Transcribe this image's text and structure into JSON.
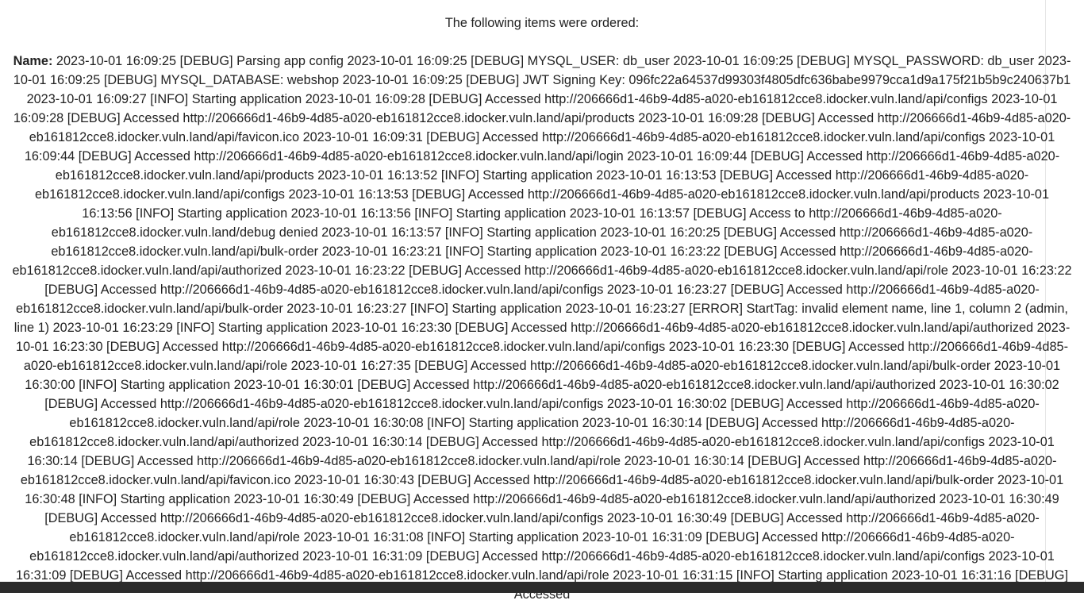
{
  "page": {
    "heading": "The following items were ordered:",
    "name_label": "Name:",
    "name_value": "2023-10-01 16:09:25 [DEBUG] Parsing app config 2023-10-01 16:09:25 [DEBUG] MYSQL_USER: db_user 2023-10-01 16:09:25 [DEBUG] MYSQL_PASSWORD: db_user 2023-10-01 16:09:25 [DEBUG] MYSQL_DATABASE: webshop 2023-10-01 16:09:25 [DEBUG] JWT Signing Key: 096fc22a64537d99303f4805dfc636babe9979cca1d9a175f21b5b9c240637b1 2023-10-01 16:09:27 [INFO] Starting application 2023-10-01 16:09:28 [DEBUG] Accessed http://206666d1-46b9-4d85-a020-eb161812cce8.idocker.vuln.land/api/configs 2023-10-01 16:09:28 [DEBUG] Accessed http://206666d1-46b9-4d85-a020-eb161812cce8.idocker.vuln.land/api/products 2023-10-01 16:09:28 [DEBUG] Accessed http://206666d1-46b9-4d85-a020-eb161812cce8.idocker.vuln.land/api/favicon.ico 2023-10-01 16:09:31 [DEBUG] Accessed http://206666d1-46b9-4d85-a020-eb161812cce8.idocker.vuln.land/api/configs 2023-10-01 16:09:44 [DEBUG] Accessed http://206666d1-46b9-4d85-a020-eb161812cce8.idocker.vuln.land/api/login 2023-10-01 16:09:44 [DEBUG] Accessed http://206666d1-46b9-4d85-a020-eb161812cce8.idocker.vuln.land/api/products 2023-10-01 16:13:52 [INFO] Starting application 2023-10-01 16:13:53 [DEBUG] Accessed http://206666d1-46b9-4d85-a020-eb161812cce8.idocker.vuln.land/api/configs 2023-10-01 16:13:53 [DEBUG] Accessed http://206666d1-46b9-4d85-a020-eb161812cce8.idocker.vuln.land/api/products 2023-10-01 16:13:56 [INFO] Starting application 2023-10-01 16:13:56 [INFO] Starting application 2023-10-01 16:13:57 [DEBUG] Access to http://206666d1-46b9-4d85-a020-eb161812cce8.idocker.vuln.land/debug denied 2023-10-01 16:13:57 [INFO] Starting application 2023-10-01 16:20:25 [DEBUG] Accessed http://206666d1-46b9-4d85-a020-eb161812cce8.idocker.vuln.land/api/bulk-order 2023-10-01 16:23:21 [INFO] Starting application 2023-10-01 16:23:22 [DEBUG] Accessed http://206666d1-46b9-4d85-a020-eb161812cce8.idocker.vuln.land/api/authorized 2023-10-01 16:23:22 [DEBUG] Accessed http://206666d1-46b9-4d85-a020-eb161812cce8.idocker.vuln.land/api/role 2023-10-01 16:23:22 [DEBUG] Accessed http://206666d1-46b9-4d85-a020-eb161812cce8.idocker.vuln.land/api/configs 2023-10-01 16:23:27 [DEBUG] Accessed http://206666d1-46b9-4d85-a020-eb161812cce8.idocker.vuln.land/api/bulk-order 2023-10-01 16:23:27 [INFO] Starting application 2023-10-01 16:23:27 [ERROR] StartTag: invalid element name, line 1, column 2 (admin, line 1) 2023-10-01 16:23:29 [INFO] Starting application 2023-10-01 16:23:30 [DEBUG] Accessed http://206666d1-46b9-4d85-a020-eb161812cce8.idocker.vuln.land/api/authorized 2023-10-01 16:23:30 [DEBUG] Accessed http://206666d1-46b9-4d85-a020-eb161812cce8.idocker.vuln.land/api/configs 2023-10-01 16:23:30 [DEBUG] Accessed http://206666d1-46b9-4d85-a020-eb161812cce8.idocker.vuln.land/api/role 2023-10-01 16:27:35 [DEBUG] Accessed http://206666d1-46b9-4d85-a020-eb161812cce8.idocker.vuln.land/api/bulk-order 2023-10-01 16:30:00 [INFO] Starting application 2023-10-01 16:30:01 [DEBUG] Accessed http://206666d1-46b9-4d85-a020-eb161812cce8.idocker.vuln.land/api/authorized 2023-10-01 16:30:02 [DEBUG] Accessed http://206666d1-46b9-4d85-a020-eb161812cce8.idocker.vuln.land/api/configs 2023-10-01 16:30:02 [DEBUG] Accessed http://206666d1-46b9-4d85-a020-eb161812cce8.idocker.vuln.land/api/role 2023-10-01 16:30:08 [INFO] Starting application 2023-10-01 16:30:14 [DEBUG] Accessed http://206666d1-46b9-4d85-a020-eb161812cce8.idocker.vuln.land/api/authorized 2023-10-01 16:30:14 [DEBUG] Accessed http://206666d1-46b9-4d85-a020-eb161812cce8.idocker.vuln.land/api/configs 2023-10-01 16:30:14 [DEBUG] Accessed http://206666d1-46b9-4d85-a020-eb161812cce8.idocker.vuln.land/api/role 2023-10-01 16:30:14 [DEBUG] Accessed http://206666d1-46b9-4d85-a020-eb161812cce8.idocker.vuln.land/api/favicon.ico 2023-10-01 16:30:43 [DEBUG] Accessed http://206666d1-46b9-4d85-a020-eb161812cce8.idocker.vuln.land/api/bulk-order 2023-10-01 16:30:48 [INFO] Starting application 2023-10-01 16:30:49 [DEBUG] Accessed http://206666d1-46b9-4d85-a020-eb161812cce8.idocker.vuln.land/api/authorized 2023-10-01 16:30:49 [DEBUG] Accessed http://206666d1-46b9-4d85-a020-eb161812cce8.idocker.vuln.land/api/configs 2023-10-01 16:30:49 [DEBUG] Accessed http://206666d1-46b9-4d85-a020-eb161812cce8.idocker.vuln.land/api/role 2023-10-01 16:31:08 [INFO] Starting application 2023-10-01 16:31:09 [DEBUG] Accessed http://206666d1-46b9-4d85-a020-eb161812cce8.idocker.vuln.land/api/authorized 2023-10-01 16:31:09 [DEBUG] Accessed http://206666d1-46b9-4d85-a020-eb161812cce8.idocker.vuln.land/api/configs 2023-10-01 16:31:09 [DEBUG] Accessed http://206666d1-46b9-4d85-a020-eb161812cce8.idocker.vuln.land/api/role 2023-10-01 16:31:15 [INFO] Starting application 2023-10-01 16:31:16 [DEBUG] Accessed"
  }
}
